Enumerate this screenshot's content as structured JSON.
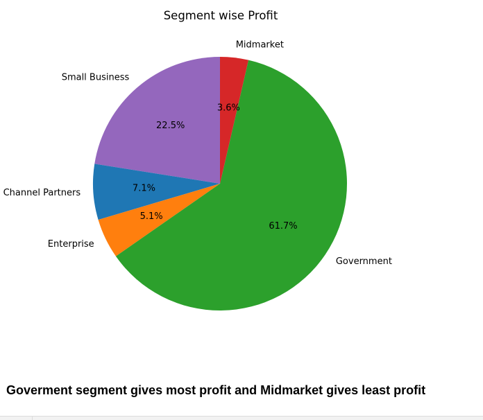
{
  "chart_data": {
    "type": "pie",
    "title": "Segment wise Profit",
    "start_angle_deg": 90,
    "direction": "counterclockwise",
    "slices": [
      {
        "label": "Small Business",
        "value": 22.5,
        "pct_label": "22.5%",
        "color": "#9467bd"
      },
      {
        "label": "Channel Partners",
        "value": 7.1,
        "pct_label": "7.1%",
        "color": "#1f77b4"
      },
      {
        "label": "Enterprise",
        "value": 5.1,
        "pct_label": "5.1%",
        "color": "#ff7f0e"
      },
      {
        "label": "Government",
        "value": 61.7,
        "pct_label": "61.7%",
        "color": "#2ca02c"
      },
      {
        "label": "Midmarket",
        "value": 3.6,
        "pct_label": "3.6%",
        "color": "#d62728"
      }
    ]
  },
  "caption": "Goverment segment gives most profit and Midmarket gives least profit"
}
